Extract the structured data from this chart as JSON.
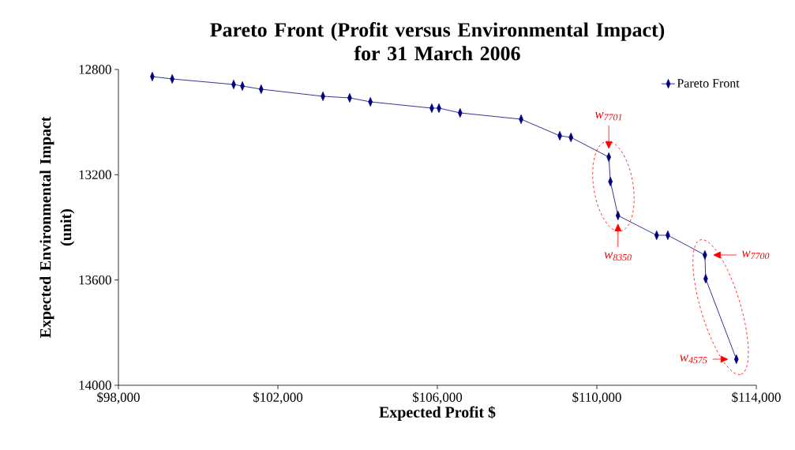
{
  "chart_data": {
    "type": "line",
    "title": "Pareto Front (Profit versus Environmental Impact) for 31 March 2006",
    "xlabel": "Expected Profit $",
    "ylabel": "Expected Environmental Impact (unit)",
    "x": [
      98850,
      99350,
      100890,
      101110,
      101580,
      103130,
      103800,
      104320,
      105860,
      106040,
      106570,
      108100,
      109070,
      109350,
      110300,
      110340,
      110530,
      111500,
      111780,
      112710,
      112730,
      113500
    ],
    "series": [
      {
        "name": "Pareto Front",
        "color": "#000080",
        "values": [
          12827,
          12836,
          12857,
          12863,
          12875,
          12902,
          12908,
          12923,
          12947,
          12947,
          12965,
          12989,
          13052,
          13058,
          13133,
          13226,
          13355,
          13430,
          13430,
          13505,
          13595,
          13901
        ]
      }
    ],
    "xlim": [
      98000,
      114000
    ],
    "xticks": [
      {
        "value": 98000,
        "label": "$98,000"
      },
      {
        "value": 102000,
        "label": "$102,000"
      },
      {
        "value": 106000,
        "label": "$106,000"
      },
      {
        "value": 110000,
        "label": "$110,000"
      },
      {
        "value": 114000,
        "label": "$114,000"
      }
    ],
    "ylim": [
      14000,
      12800
    ],
    "yticks": [
      12800,
      13200,
      13600,
      14000
    ],
    "marker": "diamond",
    "line_style": "solid",
    "grid": false,
    "legend": "top right",
    "annotations": [
      {
        "text": "w$_{7701}$",
        "x": 110300,
        "y": 13133
      },
      {
        "text": "w$_{8350}$",
        "x": 110530,
        "y": 13355
      },
      {
        "text": "w$_{7700}$",
        "x": 112710,
        "y": 13505
      },
      {
        "text": "w$_{4575}$",
        "x": 113500,
        "y": 13901
      }
    ]
  }
}
